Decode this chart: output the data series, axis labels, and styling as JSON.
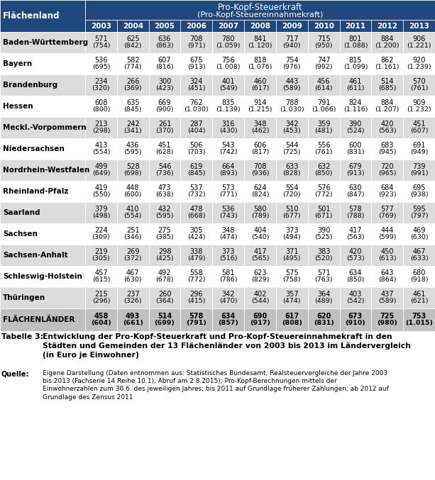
{
  "header_row": [
    "2003",
    "2004",
    "2005",
    "2006",
    "2007",
    "2008",
    "2009",
    "2010",
    "2011",
    "2012",
    "2013"
  ],
  "rows": [
    {
      "land": "Baden-Württemberg",
      "values": [
        571,
        625,
        636,
        708,
        780,
        841,
        717,
        715,
        801,
        884,
        906
      ],
      "values2": [
        754,
        842,
        863,
        971,
        1059,
        1120,
        940,
        950,
        1088,
        1200,
        1221
      ],
      "bold": false
    },
    {
      "land": "Bayern",
      "values": [
        536,
        582,
        607,
        675,
        756,
        818,
        754,
        747,
        815,
        862,
        920
      ],
      "values2": [
        695,
        774,
        816,
        913,
        1008,
        1076,
        976,
        992,
        1099,
        1161,
        1239
      ],
      "bold": false
    },
    {
      "land": "Brandenburg",
      "values": [
        234,
        266,
        300,
        324,
        401,
        460,
        443,
        456,
        461,
        514,
        570
      ],
      "values2": [
        320,
        369,
        423,
        451,
        549,
        617,
        589,
        614,
        611,
        685,
        761
      ],
      "bold": false
    },
    {
      "land": "Hessen",
      "values": [
        608,
        635,
        669,
        762,
        835,
        914,
        788,
        791,
        824,
        884,
        909
      ],
      "values2": [
        800,
        845,
        900,
        1030,
        1139,
        1215,
        1030,
        1066,
        1116,
        1207,
        1232
      ],
      "bold": false
    },
    {
      "land": "Meckl.-Vorpommern",
      "values": [
        213,
        242,
        261,
        287,
        316,
        348,
        342,
        359,
        390,
        420,
        451
      ],
      "values2": [
        298,
        341,
        370,
        404,
        430,
        462,
        453,
        481,
        524,
        563,
        607
      ],
      "bold": false
    },
    {
      "land": "Niedersachsen",
      "values": [
        413,
        436,
        451,
        506,
        543,
        606,
        544,
        556,
        600,
        683,
        691
      ],
      "values2": [
        554,
        595,
        628,
        703,
        742,
        817,
        725,
        761,
        831,
        945,
        949
      ],
      "bold": false
    },
    {
      "land": "Nordrhein-Westfalen",
      "values": [
        499,
        528,
        546,
        619,
        664,
        708,
        633,
        632,
        679,
        720,
        739
      ],
      "values2": [
        649,
        698,
        736,
        845,
        893,
        936,
        828,
        850,
        913,
        965,
        991
      ],
      "bold": false
    },
    {
      "land": "Rheinland-Pfalz",
      "values": [
        419,
        448,
        473,
        537,
        573,
        624,
        554,
        576,
        630,
        684,
        695
      ],
      "values2": [
        550,
        600,
        638,
        732,
        771,
        824,
        720,
        772,
        847,
        923,
        938
      ],
      "bold": false
    },
    {
      "land": "Saarland",
      "values": [
        379,
        410,
        432,
        478,
        536,
        580,
        510,
        501,
        578,
        577,
        595
      ],
      "values2": [
        498,
        554,
        595,
        668,
        743,
        789,
        677,
        671,
        788,
        769,
        797
      ],
      "bold": false
    },
    {
      "land": "Sachsen",
      "values": [
        224,
        251,
        275,
        305,
        348,
        404,
        373,
        390,
        417,
        444,
        469
      ],
      "values2": [
        309,
        346,
        385,
        424,
        474,
        540,
        494,
        525,
        563,
        599,
        630
      ],
      "bold": false
    },
    {
      "land": "Sachsen-Anhalt",
      "values": [
        219,
        269,
        298,
        338,
        373,
        417,
        371,
        383,
        420,
        450,
        467
      ],
      "values2": [
        305,
        372,
        425,
        479,
        516,
        565,
        495,
        520,
        573,
        613,
        633
      ],
      "bold": false
    },
    {
      "land": "Schleswig-Holstein",
      "values": [
        457,
        467,
        492,
        558,
        581,
        623,
        575,
        571,
        634,
        643,
        680
      ],
      "values2": [
        615,
        630,
        678,
        772,
        786,
        829,
        758,
        763,
        850,
        864,
        918
      ],
      "bold": false
    },
    {
      "land": "Thüringen",
      "values": [
        215,
        237,
        260,
        296,
        342,
        402,
        357,
        364,
        403,
        437,
        461
      ],
      "values2": [
        296,
        326,
        364,
        415,
        470,
        544,
        474,
        489,
        542,
        589,
        621
      ],
      "bold": false
    },
    {
      "land": "FLÄCHENLÄNDER",
      "values": [
        458,
        493,
        514,
        578,
        634,
        690,
        617,
        620,
        673,
        725,
        753
      ],
      "values2": [
        604,
        661,
        699,
        791,
        857,
        917,
        808,
        831,
        910,
        980,
        1015
      ],
      "bold": true
    }
  ],
  "header_bg": "#1F497D",
  "header_fg": "#FFFFFF",
  "row_bg_even": "#DCDCDC",
  "row_bg_odd": "#FFFFFF",
  "flachen_bg": "#C0C0C0",
  "col0_header": "Flächenland",
  "main_header": "Pro-Kopf-Steuerkraft",
  "sub_header": "(Pro-Kopf-Steuereinnahmekraft)",
  "title_label": "Tabelle 3:",
  "title_text": "Entwicklung der Pro-Kopf-Steuerkraft und Pro-Kopf-Steuereinnahmekraft in den\nStädten und Gemeinden der 13 Flächenländer von 2003 bis 2013 im Ländervergleich\n(in Euro je Einwohner)",
  "source_label": "Quelle:",
  "source_text": "Eigene Darstellung (Daten entnommen aus: Statistisches Bundesamt, Realsteuervergleiche der Jahre 2003\nbis 2013 (Fachserie 14 Reihe 10.1), Abruf am 2.8.2015); Pro-Kopf-Berechnungen mittels der\nEinwohnerzahlen zum 30.6. des jeweiligen Jahres; bis 2011 auf Grundlage früherer Zählungen; ab 2012 auf\nGrundlage des Zensus 2011"
}
